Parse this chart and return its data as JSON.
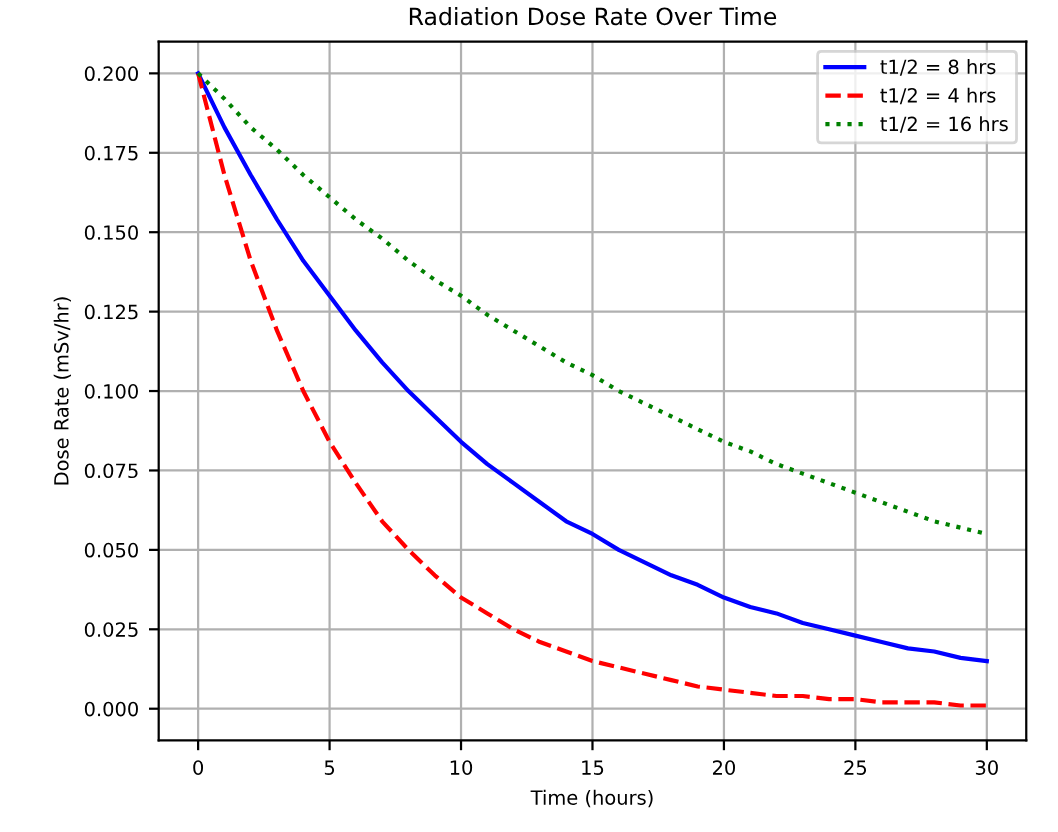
{
  "chart_data": {
    "type": "line",
    "title": "Radiation Dose Rate Over Time",
    "xlabel": "Time (hours)",
    "ylabel": "Dose Rate (mSv/hr)",
    "x": [
      0,
      1,
      2,
      3,
      4,
      5,
      6,
      7,
      8,
      9,
      10,
      11,
      12,
      13,
      14,
      15,
      16,
      17,
      18,
      19,
      20,
      21,
      22,
      23,
      24,
      25,
      26,
      27,
      28,
      29,
      30
    ],
    "series": [
      {
        "name": "t1/2 = 8 hrs",
        "color": "#0000ff",
        "line_style": "solid",
        "values": [
          0.2,
          0.183,
          0.168,
          0.154,
          0.141,
          0.13,
          0.119,
          0.109,
          0.1,
          0.092,
          0.084,
          0.077,
          0.071,
          0.065,
          0.059,
          0.055,
          0.05,
          0.046,
          0.042,
          0.039,
          0.035,
          0.032,
          0.03,
          0.027,
          0.025,
          0.023,
          0.021,
          0.019,
          0.018,
          0.016,
          0.015
        ]
      },
      {
        "name": "t1/2 = 4 hrs",
        "color": "#ff0000",
        "line_style": "dashed",
        "values": [
          0.2,
          0.168,
          0.141,
          0.119,
          0.1,
          0.084,
          0.071,
          0.059,
          0.05,
          0.042,
          0.035,
          0.03,
          0.025,
          0.021,
          0.018,
          0.015,
          0.013,
          0.011,
          0.009,
          0.007,
          0.006,
          0.005,
          0.004,
          0.004,
          0.003,
          0.003,
          0.002,
          0.002,
          0.002,
          0.001,
          0.001
        ]
      },
      {
        "name": "t1/2 = 16 hrs",
        "color": "#008000",
        "line_style": "dotted",
        "values": [
          0.2,
          0.192,
          0.183,
          0.176,
          0.168,
          0.161,
          0.154,
          0.148,
          0.141,
          0.135,
          0.13,
          0.124,
          0.119,
          0.114,
          0.109,
          0.105,
          0.1,
          0.096,
          0.092,
          0.088,
          0.084,
          0.081,
          0.077,
          0.074,
          0.071,
          0.068,
          0.065,
          0.062,
          0.059,
          0.057,
          0.055
        ]
      }
    ],
    "xlim": [
      -1.5,
      31.5
    ],
    "xticks": [
      0,
      5,
      10,
      15,
      20,
      25,
      30
    ],
    "ylim": [
      -0.01,
      0.21
    ],
    "yticks": [
      {
        "value": 0,
        "label": "0.000"
      },
      {
        "value": 0.025,
        "label": "0.025"
      },
      {
        "value": 0.05,
        "label": "0.050"
      },
      {
        "value": 0.075,
        "label": "0.075"
      },
      {
        "value": 0.1,
        "label": "0.100"
      },
      {
        "value": 0.125,
        "label": "0.125"
      },
      {
        "value": 0.15,
        "label": "0.150"
      },
      {
        "value": 0.175,
        "label": "0.175"
      },
      {
        "value": 0.2,
        "label": "0.200"
      }
    ],
    "grid": true,
    "legend": "top right",
    "marker": "none"
  }
}
